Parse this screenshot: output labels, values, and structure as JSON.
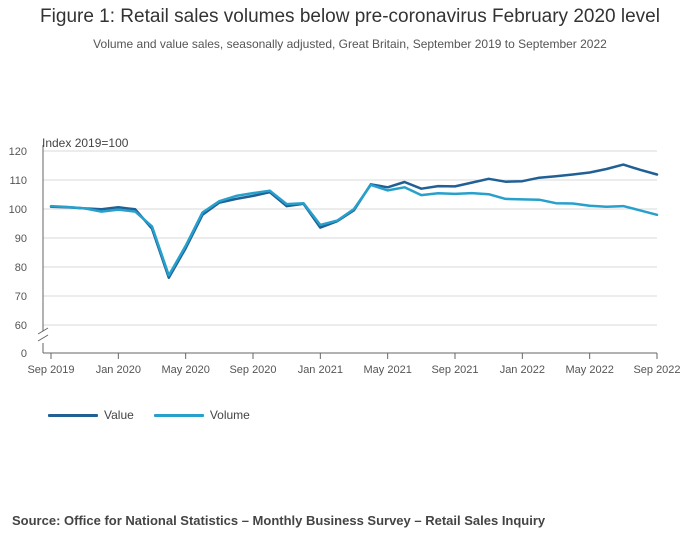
{
  "title": "Figure 1: Retail sales volumes below pre-coronavirus February 2020 level",
  "subtitle": "Volume and value sales, seasonally adjusted, Great Britain, September 2019 to September 2022",
  "source": "Source: Office for National Statistics – Monthly Business Survey – Retail Sales Inquiry",
  "chart_data": {
    "type": "line",
    "ylabel": "Index 2019=100",
    "ylim": [
      60,
      120
    ],
    "y_axis_break": true,
    "yticks": [
      0,
      60,
      70,
      80,
      90,
      100,
      110,
      120
    ],
    "grid": true,
    "legend_position": "bottom-left",
    "x": [
      "Sep 2019",
      "Oct 2019",
      "Nov 2019",
      "Dec 2019",
      "Jan 2020",
      "Feb 2020",
      "Mar 2020",
      "Apr 2020",
      "May 2020",
      "Jun 2020",
      "Jul 2020",
      "Aug 2020",
      "Sep 2020",
      "Oct 2020",
      "Nov 2020",
      "Dec 2020",
      "Jan 2021",
      "Feb 2021",
      "Mar 2021",
      "Apr 2021",
      "May 2021",
      "Jun 2021",
      "Jul 2021",
      "Aug 2021",
      "Sep 2021",
      "Oct 2021",
      "Nov 2021",
      "Dec 2021",
      "Jan 2022",
      "Feb 2022",
      "Mar 2022",
      "Apr 2022",
      "May 2022",
      "Jun 2022",
      "Jul 2022",
      "Aug 2022",
      "Sep 2022"
    ],
    "xtick_labels": [
      "Sep 2019",
      "Jan 2020",
      "May 2020",
      "Sep 2020",
      "Jan 2021",
      "May 2021",
      "Sep 2021",
      "Jan 2022",
      "May 2022",
      "Sep 2022"
    ],
    "series": [
      {
        "name": "Value",
        "color": "#206095",
        "values": [
          100.8,
          100.6,
          100.2,
          99.9,
          100.6,
          99.9,
          93.2,
          76.3,
          86.5,
          98.0,
          102.2,
          103.5,
          104.5,
          105.8,
          101.0,
          101.8,
          93.6,
          95.8,
          99.6,
          108.5,
          107.5,
          109.3,
          107.0,
          107.9,
          107.8,
          109.1,
          110.4,
          109.4,
          109.6,
          110.8,
          111.3,
          111.9,
          112.6,
          113.8,
          115.3,
          113.5,
          111.9
        ]
      },
      {
        "name": "Volume",
        "color": "#27a0cc",
        "values": [
          101.0,
          100.7,
          100.2,
          99.1,
          99.8,
          99.1,
          94.0,
          77.1,
          87.3,
          98.8,
          102.7,
          104.5,
          105.5,
          106.3,
          101.7,
          102.0,
          94.5,
          96.0,
          100.0,
          108.3,
          106.4,
          107.5,
          104.8,
          105.4,
          105.2,
          105.5,
          105.1,
          103.5,
          103.3,
          103.2,
          102.0,
          101.9,
          101.1,
          100.8,
          101.0,
          99.5,
          98.0
        ]
      }
    ]
  }
}
